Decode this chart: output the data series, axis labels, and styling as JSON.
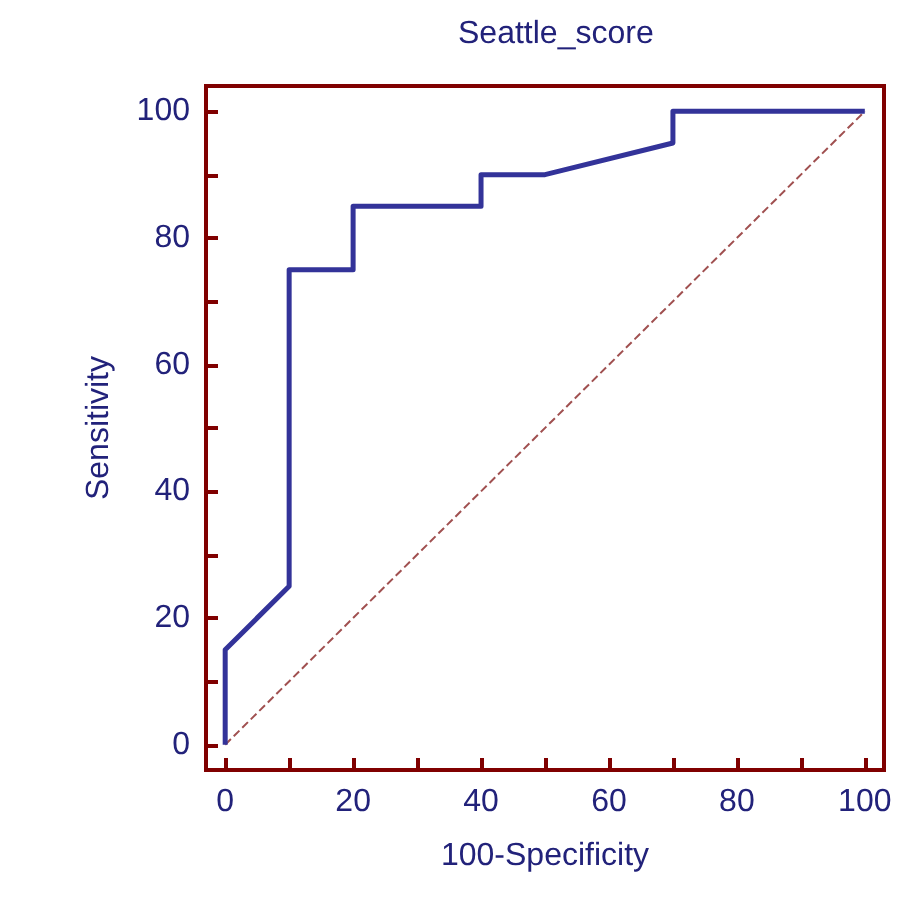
{
  "chart_data": {
    "type": "line",
    "title": "Seattle_score",
    "xlabel": "100-Specificity",
    "ylabel": "Sensitivity",
    "series": [
      {
        "color": "#333399",
        "line_style": "solid",
        "x": [
          0,
          0,
          10,
          10,
          20,
          20,
          40,
          40,
          50,
          70,
          70,
          100
        ],
        "values": [
          0,
          15,
          25,
          75,
          75,
          85,
          85,
          90,
          90,
          95,
          100,
          100
        ]
      },
      {
        "color": "#a05050",
        "line_style": "dashed",
        "x": [
          0,
          100
        ],
        "values": [
          0,
          100
        ]
      }
    ],
    "xlim": [
      -3,
      103
    ],
    "ylim": [
      -4,
      104
    ],
    "xticks": [
      0,
      {
        "value": 10,
        "label": null
      },
      20,
      {
        "value": 30,
        "label": null
      },
      40,
      {
        "value": 50,
        "label": null
      },
      60,
      {
        "value": 70,
        "label": null
      },
      80,
      {
        "value": 90,
        "label": null
      },
      100
    ],
    "yticks": [
      0,
      {
        "value": 10,
        "label": null
      },
      20,
      {
        "value": 30,
        "label": null
      },
      40,
      {
        "value": 50,
        "label": null
      },
      60,
      {
        "value": 70,
        "label": null
      },
      80,
      {
        "value": 90,
        "label": null
      },
      100
    ],
    "marker": "none"
  }
}
